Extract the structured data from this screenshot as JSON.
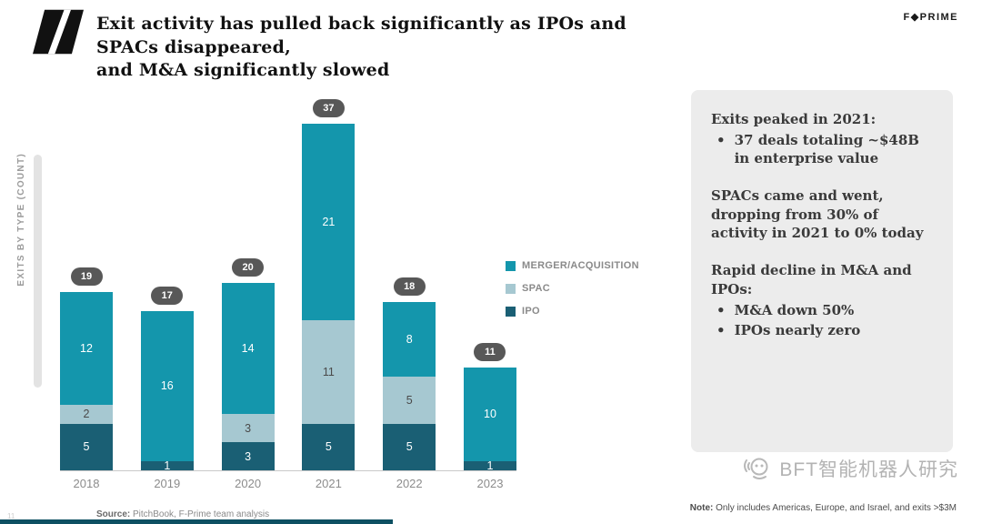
{
  "header": {
    "title_line1": "Exit activity has pulled back significantly as IPOs and SPACs disappeared,",
    "title_line2": "and M&A significantly slowed",
    "brand_logo": "F◆PRIME"
  },
  "chart_data": {
    "type": "bar",
    "stacked": true,
    "ylabel": "EXITS BY TYPE (COUNT)",
    "categories": [
      "2018",
      "2019",
      "2020",
      "2021",
      "2022",
      "2023"
    ],
    "series": [
      {
        "name": "IPO",
        "color": "#1a5f74",
        "label_color": "#ffffff",
        "values": [
          5,
          1,
          3,
          5,
          5,
          1
        ]
      },
      {
        "name": "SPAC",
        "color": "#a6c8d1",
        "label_color": "#4a4a4a",
        "values": [
          2,
          0,
          3,
          11,
          5,
          0
        ]
      },
      {
        "name": "MERGER/ACQUISITION",
        "color": "#1496ac",
        "label_color": "#ffffff",
        "values": [
          12,
          16,
          14,
          21,
          8,
          10
        ]
      }
    ],
    "totals": [
      19,
      17,
      20,
      37,
      18,
      11
    ],
    "legend_position": "right",
    "legend_order_top_to_bottom": [
      "MERGER/ACQUISITION",
      "SPAC",
      "IPO"
    ],
    "total_pill_color": "#585858",
    "grid": false
  },
  "sidebar": {
    "block1_title": "Exits peaked in 2021:",
    "block1_bullet1": "37 deals totaling ~$48B in enterprise value",
    "block2_text": "SPACs came and went, dropping from 30% of activity in 2021 to 0% today",
    "block3_title": "Rapid decline in M&A and IPOs:",
    "block3_bullet1": "M&A down 50%",
    "block3_bullet2": "IPOs nearly zero"
  },
  "footer": {
    "source_label": "Source:",
    "source_text": "PitchBook, F-Prime team analysis",
    "note_label": "Note:",
    "note_text": "Only includes Americas, Europe, and Israel, and exits >$3M",
    "watermark_text": "BFT智能机器人研究",
    "page_number": "11"
  }
}
